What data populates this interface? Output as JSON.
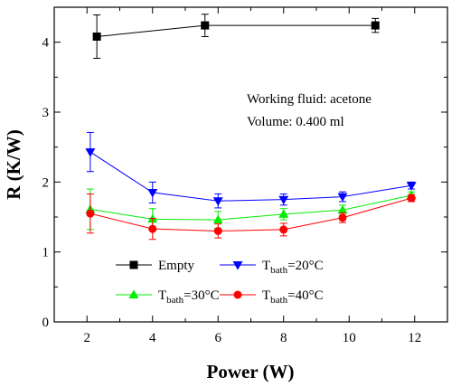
{
  "chart_data": {
    "type": "line",
    "xlabel": "Power (W)",
    "ylabel": "R (K/W)",
    "xlim": [
      1,
      13
    ],
    "ylim": [
      0,
      4.5
    ],
    "xticks": [
      2,
      4,
      6,
      8,
      10,
      12
    ],
    "yticks": [
      0,
      1,
      2,
      3,
      4
    ],
    "grid": false,
    "legend_position": "lower-left",
    "annotations": [
      "Working fluid: acetone",
      "Volume: 0.400 ml"
    ],
    "series": [
      {
        "name": "Empty",
        "legend": {
          "prefix": "Empty",
          "sub": "",
          "suffix": ""
        },
        "color": "#000000",
        "marker": "square",
        "x": [
          2.3,
          5.6,
          10.8
        ],
        "y": [
          4.08,
          4.24,
          4.24
        ],
        "err": [
          0.31,
          0.16,
          0.1
        ]
      },
      {
        "name": "Tbath=20°C",
        "legend": {
          "prefix": "T",
          "sub": "bath",
          "suffix": "=20°C"
        },
        "color": "#0000ff",
        "marker": "triangle-down",
        "x": [
          2.1,
          4.0,
          6.0,
          8.0,
          9.8,
          11.9
        ],
        "y": [
          2.43,
          1.85,
          1.73,
          1.75,
          1.79,
          1.95
        ],
        "err": [
          0.28,
          0.15,
          0.1,
          0.08,
          0.07,
          0.05
        ]
      },
      {
        "name": "Tbath=30°C",
        "legend": {
          "prefix": "T",
          "sub": "bath",
          "suffix": "=30°C"
        },
        "color": "#00ee00",
        "marker": "triangle-up",
        "x": [
          2.1,
          4.0,
          6.0,
          8.0,
          9.8,
          11.9
        ],
        "y": [
          1.61,
          1.47,
          1.46,
          1.54,
          1.6,
          1.81
        ],
        "err": [
          0.29,
          0.15,
          0.12,
          0.08,
          0.07,
          0.05
        ]
      },
      {
        "name": "Tbath=40°C",
        "legend": {
          "prefix": "T",
          "sub": "bath",
          "suffix": "=40°C"
        },
        "color": "#ff0000",
        "marker": "circle",
        "x": [
          2.1,
          4.0,
          6.0,
          8.0,
          9.8,
          11.9
        ],
        "y": [
          1.55,
          1.33,
          1.3,
          1.32,
          1.49,
          1.77
        ],
        "err": [
          0.28,
          0.15,
          0.1,
          0.09,
          0.07,
          0.05
        ]
      }
    ]
  }
}
